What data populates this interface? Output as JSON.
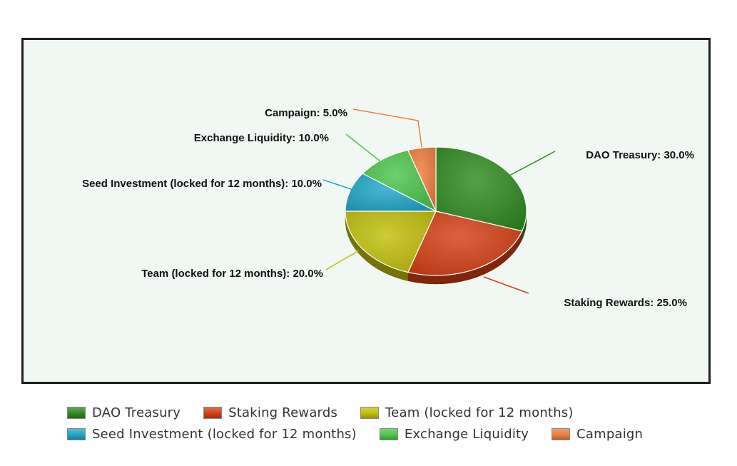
{
  "chart_data": {
    "type": "pie",
    "slices": [
      {
        "name": "DAO Treasury",
        "value": 30.0,
        "label": "DAO Treasury: 30.0%",
        "color": "#2e8b1e"
      },
      {
        "name": "Staking Rewards",
        "value": 25.0,
        "label": "Staking Rewards: 25.0%",
        "color": "#d43f14"
      },
      {
        "name": "Team (locked for 12 months)",
        "value": 20.0,
        "label": "Team (locked for 12 months): 20.0%",
        "color": "#c2bf0a"
      },
      {
        "name": "Seed Investment (locked for 12 months)",
        "value": 10.0,
        "label": "Seed Investment (locked for 12 months): 10.0%",
        "color": "#1ea6c8"
      },
      {
        "name": "Exchange Liquidity",
        "value": 10.0,
        "label": "Exchange Liquidity: 10.0%",
        "color": "#4cc64a"
      },
      {
        "name": "Campaign",
        "value": 5.0,
        "label": "Campaign: 5.0%",
        "color": "#ee7d3c"
      }
    ],
    "legend_position": "bottom",
    "three_d": true
  },
  "legend": {
    "rows": [
      [
        {
          "label": "DAO Treasury",
          "color": "#2e8b1e"
        },
        {
          "label": "Staking Rewards",
          "color": "#d43f14"
        },
        {
          "label": "Team (locked for 12 months)",
          "color": "#c2bf0a"
        }
      ],
      [
        {
          "label": "Seed Investment (locked for 12 months)",
          "color": "#1ea6c8"
        },
        {
          "label": "Exchange Liquidity",
          "color": "#4cc64a"
        },
        {
          "label": "Campaign",
          "color": "#ee7d3c"
        }
      ]
    ]
  }
}
